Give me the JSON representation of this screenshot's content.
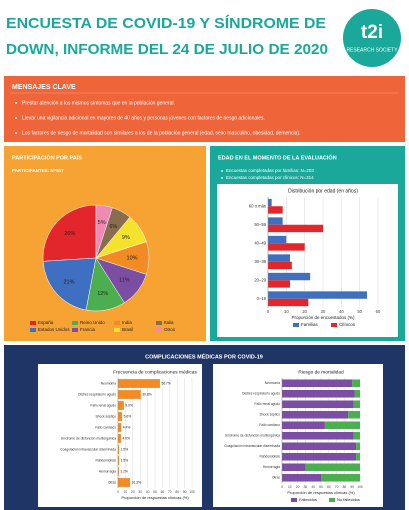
{
  "header": {
    "title_lines": [
      "ENCUESTA DE COVID-19 Y SÍNDROME DE",
      "DOWN, INFORME DEL 24 DE JULIO DE 2020"
    ],
    "logo": "t2i",
    "logo_subtitle": "RESEARCH SOCIETY"
  },
  "key_messages": {
    "title": "MENSAJES CLAVE",
    "items": [
      "Prestar atención a los mismos síntomas que en la población general.",
      "Llevar una vigilancia adicional en mayores de 40 años y personas jóvenes con factores de riesgo adicionales.",
      "Los factores de riesgo de mortalidad son similares a los de la población general (edad, sexo masculino, obesidad, demencia)."
    ]
  },
  "country_panel": {
    "title": "PARTICIPACIÓN POR PAÍS",
    "subtitle": "PARTICIPANTES: N=517"
  },
  "age_panel": {
    "title": "EDAD EN EL MOMENTO DE LA EVALUACIÓN",
    "notes": [
      "Encuestas completadas por familias: N=203",
      "Encuestas completadas por clínicos: N=314"
    ]
  },
  "complications_panel": {
    "title": "COMPLICACIONES MÉDICAS POR COVID-19"
  },
  "chart_data": [
    {
      "type": "pie",
      "categories": [
        "España",
        "Estados Unidos",
        "Reino Unido",
        "Francia",
        "India",
        "Brasil",
        "Italia",
        "Otros"
      ],
      "values": [
        26,
        21,
        12,
        11,
        10,
        9,
        6,
        5
      ],
      "value_labels": [
        "26%",
        "21%",
        "12%",
        "11%",
        "10%",
        "9%",
        "6%",
        "5%"
      ],
      "colors": [
        "#e3262b",
        "#3f6fc1",
        "#4cae4f",
        "#7b4ea3",
        "#f28b24",
        "#f5e22d",
        "#8a6d4e",
        "#f08ab3"
      ]
    },
    {
      "type": "bar",
      "orientation": "horizontal",
      "title": "Distribución por edad (en años)",
      "categories": [
        "60 o más",
        "50–59",
        "40–49",
        "30–39",
        "20–29",
        "0–19"
      ],
      "series": [
        {
          "name": "Familias",
          "color": "#3f6fc1",
          "values": [
            2,
            8,
            10,
            12,
            23,
            54
          ]
        },
        {
          "name": "Clínicos",
          "color": "#e3262b",
          "values": [
            8,
            30,
            20,
            13,
            12,
            22
          ]
        }
      ],
      "xlabel": "Proporción de encuestados (%)",
      "xlim": [
        0,
        60
      ],
      "xticks": [
        0,
        10,
        20,
        30,
        40,
        50,
        60
      ],
      "grid": true
    },
    {
      "type": "bar",
      "orientation": "horizontal",
      "title": "Frecuencia de complicaciones médicas",
      "categories": [
        "Neumonía",
        "Distrés respiratorio agudo",
        "Fallo renal agudo",
        "Shock séptico",
        "Fallo cardíaco",
        "Síndrome de disfunción multiorgánica",
        "Coagulación intravascular diseminada",
        "Rabdomiólisis",
        "Hemorragia",
        "Otras"
      ],
      "values": [
        56.7,
        30.8,
        8.0,
        5.6,
        4.4,
        4.0,
        1.5,
        1.5,
        1.2,
        16.3
      ],
      "value_labels": [
        "56.7%",
        "30.8%",
        "8.0%",
        "5.6%",
        "4.4%",
        "4.0%",
        "1.5%",
        "1.5%",
        "1.2%",
        "16.3%"
      ],
      "color": "#f28b24",
      "xlabel": "Proporción de respuestas clínicas (%)",
      "xlim": [
        0,
        100
      ],
      "xticks": [
        0,
        10,
        20,
        30,
        40,
        50,
        60,
        70,
        80,
        90,
        100
      ],
      "grid": true
    },
    {
      "type": "stacked_bar",
      "orientation": "horizontal",
      "title": "Riesgo de mortalidad",
      "categories": [
        "Neumonía",
        "Distrés respiratorio agudo",
        "Fallo renal agudo",
        "Shock séptico",
        "Fallo cardíaco",
        "Síndrome de disfunción multiorgánica",
        "Coagulación intravascular diseminada",
        "Rabdomiólisis",
        "Hemorragia",
        "Otras"
      ],
      "series": [
        {
          "name": "Fallecidos",
          "color": "#7b4ea3",
          "values": [
            90,
            93,
            92,
            85,
            55,
            92,
            95,
            95,
            30,
            50
          ]
        },
        {
          "name": "No fallecidos",
          "color": "#4cae4f",
          "values": [
            10,
            7,
            8,
            15,
            45,
            8,
            5,
            5,
            70,
            50
          ]
        }
      ],
      "xlabel": "Proporción de respuestas clínicas (%)",
      "xlim": [
        0,
        100
      ],
      "xticks": [
        0,
        10,
        20,
        30,
        40,
        50,
        60,
        70,
        80,
        90,
        100
      ],
      "grid": true
    }
  ]
}
